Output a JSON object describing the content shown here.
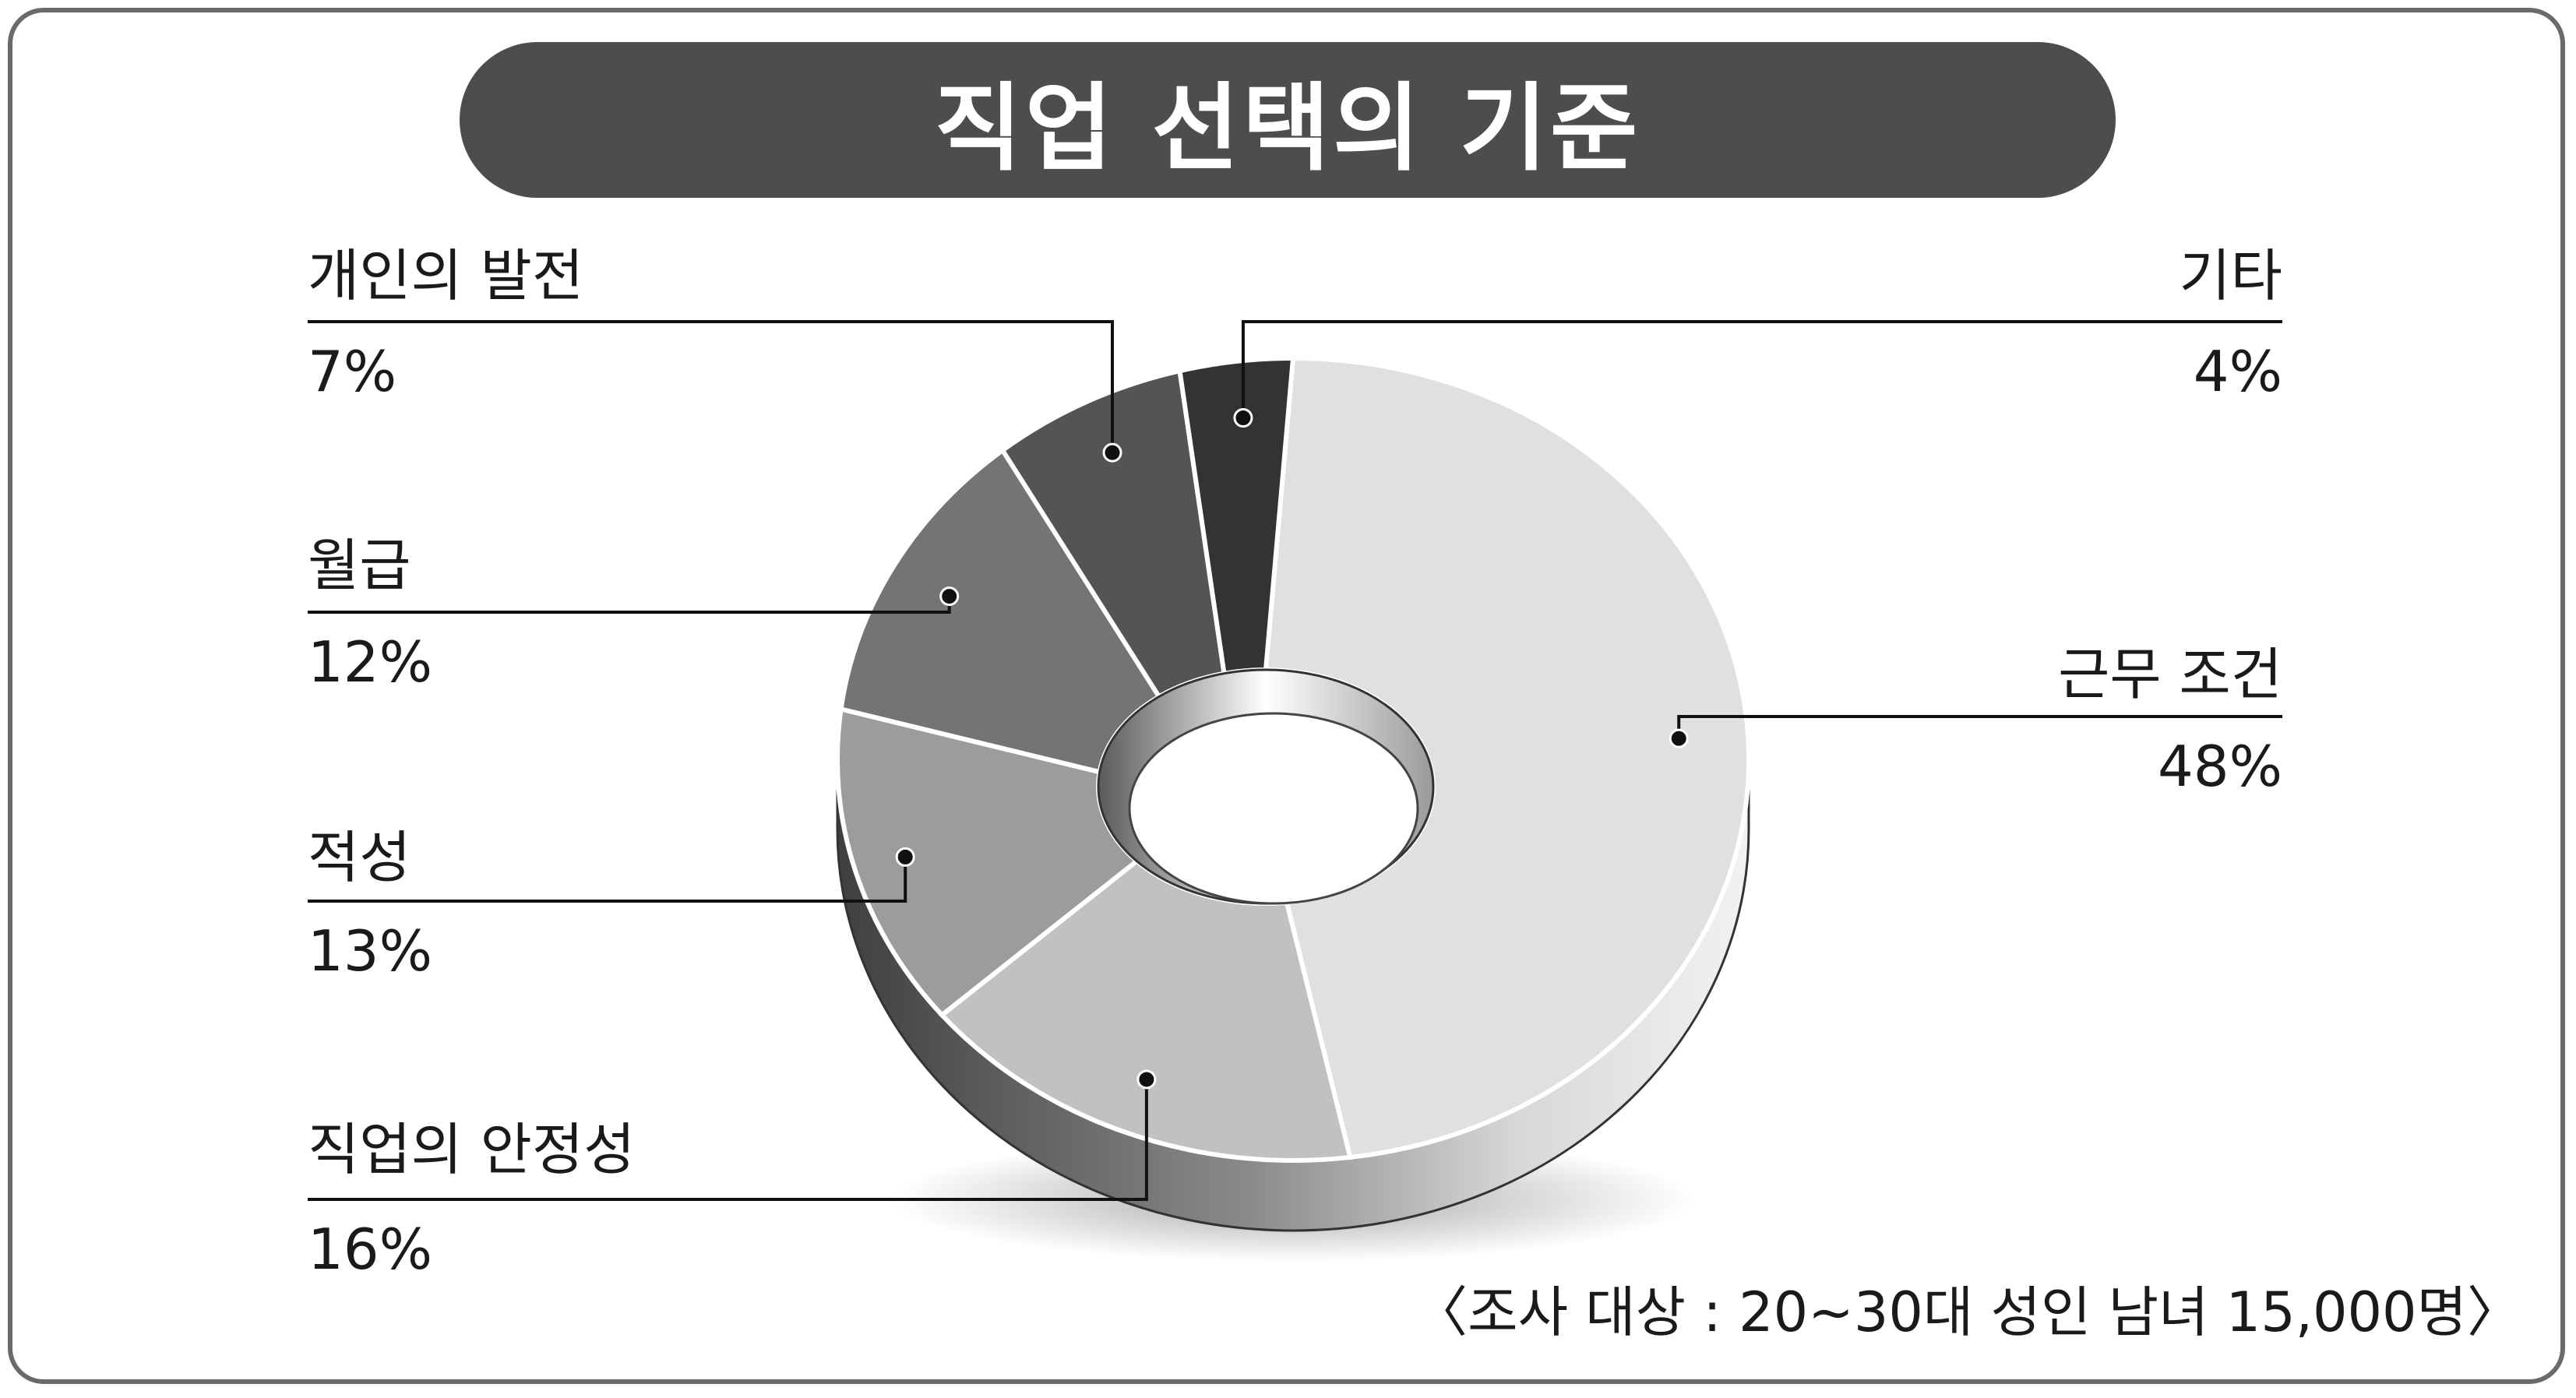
{
  "chart_data": {
    "type": "pie",
    "title": "직업 선택의 기준",
    "slices": [
      {
        "label": "근무 조건",
        "value_text": "48%",
        "value": 48,
        "color": "#e0e0e0"
      },
      {
        "label": "직업의 안정성",
        "value_text": "16%",
        "value": 16,
        "color": "#c1c1c1"
      },
      {
        "label": "적성",
        "value_text": "13%",
        "value": 13,
        "color": "#9c9c9c"
      },
      {
        "label": "월급",
        "value_text": "12%",
        "value": 12,
        "color": "#747474"
      },
      {
        "label": "개인의 발전",
        "value_text": "7%",
        "value": 7,
        "color": "#545454"
      },
      {
        "label": "기타",
        "value_text": "4%",
        "value": 4,
        "color": "#333333"
      }
    ],
    "note": "〈조사 대상 : 20∼30대 성인 남녀 15,000명〉"
  }
}
